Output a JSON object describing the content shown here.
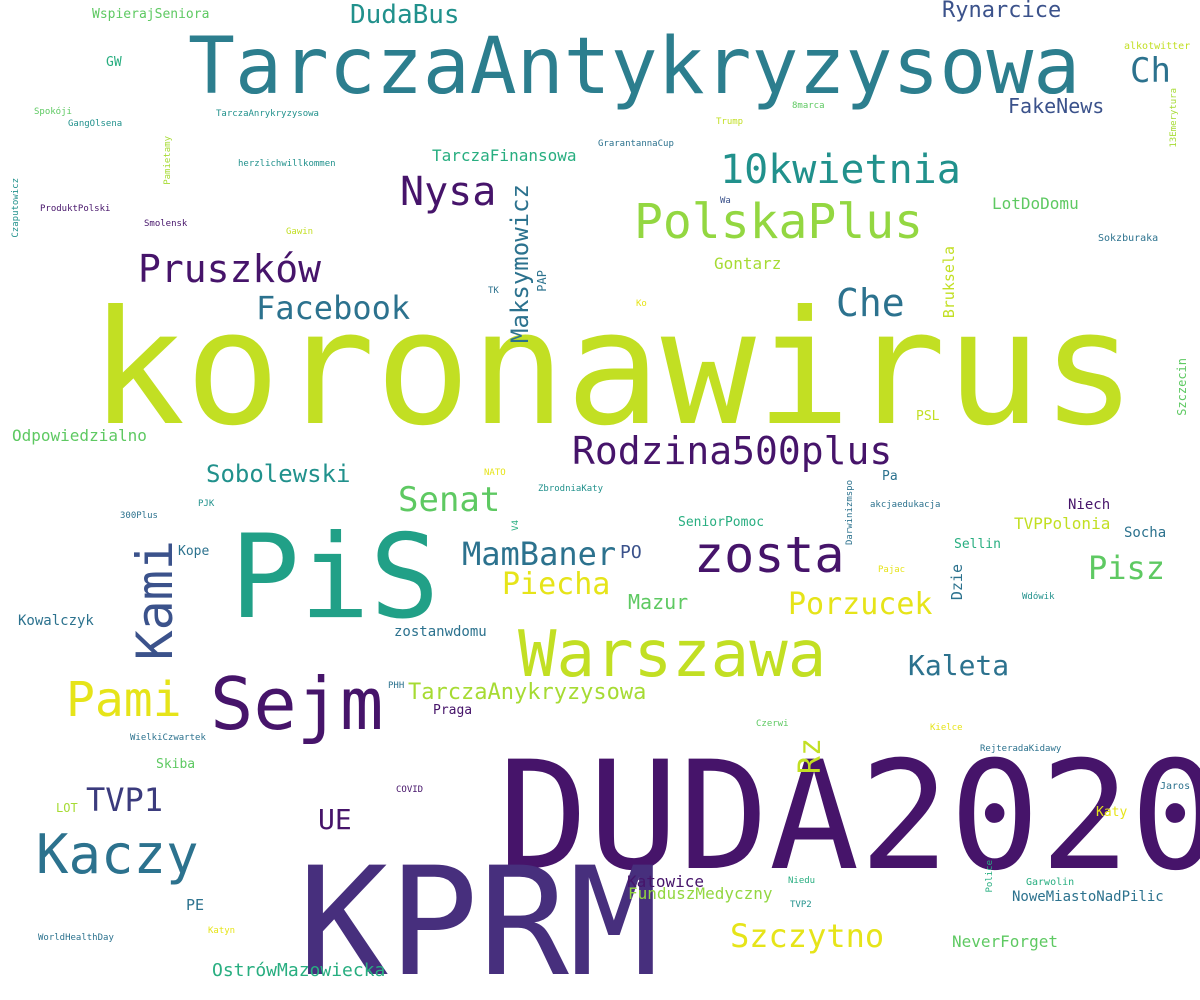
{
  "palette": {
    "dark_purple": "#440154",
    "indigo": "#472f7d",
    "blue": "#3b528b",
    "steel_blue": "#2c728e",
    "teal": "#21918c",
    "green_teal": "#28ae80",
    "green": "#5ec962",
    "lime": "#addc30",
    "yellow_green": "#c2df23",
    "yellow": "#e6e419"
  },
  "words": [
    {
      "text": "koronawirus",
      "color": "#c2df23"
    },
    {
      "text": "DUDA2020",
      "color": "#46146a"
    },
    {
      "text": "KPRM",
      "color": "#472f7d"
    },
    {
      "text": "PiS",
      "color": "#21a087"
    },
    {
      "text": "TarczaAntykryzysowa",
      "color": "#2c7e8e"
    },
    {
      "text": "Warszawa",
      "color": "#c2df23"
    },
    {
      "text": "Sejm",
      "color": "#46146a"
    },
    {
      "text": "Kaczy",
      "color": "#2c728e"
    },
    {
      "text": "Kami",
      "color": "#3b528b"
    },
    {
      "text": "Pami",
      "color": "#e6e419"
    },
    {
      "text": "zosta",
      "color": "#46146a"
    },
    {
      "text": "PolskaPlus",
      "color": "#93d741"
    },
    {
      "text": "Rodzina500plus",
      "color": "#46146a"
    },
    {
      "text": "10kwietnia",
      "color": "#21918c"
    },
    {
      "text": "Nysa",
      "color": "#46146a"
    },
    {
      "text": "Pruszków",
      "color": "#46146a"
    },
    {
      "text": "Che",
      "color": "#2c728e"
    },
    {
      "text": "Facebook",
      "color": "#2c728e"
    },
    {
      "text": "MamBaner",
      "color": "#2c728e"
    },
    {
      "text": "Senat",
      "color": "#5ec962"
    },
    {
      "text": "Szczytno",
      "color": "#e6e419"
    },
    {
      "text": "Ch",
      "color": "#2c728e"
    },
    {
      "text": "Porzucek",
      "color": "#e6e419"
    },
    {
      "text": "Piecha",
      "color": "#e6e419"
    },
    {
      "text": "Pisz",
      "color": "#5ec962"
    },
    {
      "text": "TVP1",
      "color": "#3b3b7d"
    },
    {
      "text": "Kaleta",
      "color": "#2c728e"
    },
    {
      "text": "Maksymowicz",
      "color": "#2c728e"
    },
    {
      "text": "Rz",
      "color": "#c2df23"
    },
    {
      "text": "UE",
      "color": "#46146a"
    },
    {
      "text": "DudaBus",
      "color": "#21918c"
    },
    {
      "text": "Sobolewski",
      "color": "#21918c"
    },
    {
      "text": "Rynarcice",
      "color": "#3b528b"
    },
    {
      "text": "TarczaAnykryzysowa",
      "color": "#a6db33"
    },
    {
      "text": "OstrówMazowiecka",
      "color": "#28ae80"
    },
    {
      "text": "Mazur",
      "color": "#5ec962"
    },
    {
      "text": "FakeNews",
      "color": "#3b528b"
    },
    {
      "text": "Katowice",
      "color": "#46146a"
    },
    {
      "text": "FunduszMedyczny",
      "color": "#93d741"
    },
    {
      "text": "NeverForget",
      "color": "#5ec962"
    },
    {
      "text": "Odpowiedzialno",
      "color": "#5ec962"
    },
    {
      "text": "TarczaFinansowa",
      "color": "#28ae80"
    },
    {
      "text": "Gontarz",
      "color": "#a6db33"
    },
    {
      "text": "LotDoDomu",
      "color": "#5ec962"
    },
    {
      "text": "TVPPolonia",
      "color": "#c2df23"
    },
    {
      "text": "zostanwdomu",
      "color": "#2c728e"
    },
    {
      "text": "PO",
      "color": "#3b528b"
    },
    {
      "text": "Bruksela",
      "color": "#c2df23"
    },
    {
      "text": "NoweMiastoNadPilic",
      "color": "#2c728e"
    },
    {
      "text": "Kowalczyk",
      "color": "#2c728e"
    },
    {
      "text": "Dzie",
      "color": "#2c728e"
    },
    {
      "text": "Socha",
      "color": "#2c728e"
    },
    {
      "text": "WspierajSeniora",
      "color": "#5ec962"
    },
    {
      "text": "Sellin",
      "color": "#28ae80"
    },
    {
      "text": "Niech",
      "color": "#46146a"
    },
    {
      "text": "PE",
      "color": "#2c728e"
    },
    {
      "text": "Skiba",
      "color": "#5ec962"
    },
    {
      "text": "Praga",
      "color": "#46146a"
    },
    {
      "text": "SeniorPomoc",
      "color": "#28ae80"
    },
    {
      "text": "Kope",
      "color": "#2c728e"
    },
    {
      "text": "Pa",
      "color": "#2c728e"
    },
    {
      "text": "PSL",
      "color": "#c2df23"
    },
    {
      "text": "GW",
      "color": "#28ae80"
    },
    {
      "text": "LOT",
      "color": "#a6db33"
    },
    {
      "text": "PAP",
      "color": "#2c728e"
    },
    {
      "text": "Szczecin",
      "color": "#5ec962"
    },
    {
      "text": "Katy",
      "color": "#e6e419"
    },
    {
      "text": "Garwolin",
      "color": "#28ae80"
    },
    {
      "text": "Jaros",
      "color": "#2c728e"
    },
    {
      "text": "Sokzburaka",
      "color": "#2c728e"
    },
    {
      "text": "alkotwitter",
      "color": "#c2df23"
    },
    {
      "text": "13Emerytura",
      "color": "#a6db33"
    },
    {
      "text": "Spokóji",
      "color": "#5ec962"
    },
    {
      "text": "GangOlsena",
      "color": "#21918c"
    },
    {
      "text": "TarczaAnrykryzysowa",
      "color": "#21918c"
    },
    {
      "text": "8marca",
      "color": "#5ec962"
    },
    {
      "text": "Trump",
      "color": "#c2df23"
    },
    {
      "text": "GrarantannaCup",
      "color": "#2c728e"
    },
    {
      "text": "herzlichwillkommen",
      "color": "#21918c"
    },
    {
      "text": "Pamietamy",
      "color": "#a6db33"
    },
    {
      "text": "Czaputowicz",
      "color": "#21918c"
    },
    {
      "text": "ProduktPolski",
      "color": "#46146a"
    },
    {
      "text": "Smolensk",
      "color": "#46146a"
    },
    {
      "text": "Gawin",
      "color": "#c2df23"
    },
    {
      "text": "Wa",
      "color": "#3b528b"
    },
    {
      "text": "TK",
      "color": "#2c728e"
    },
    {
      "text": "Ko",
      "color": "#e6e419"
    },
    {
      "text": "NATO",
      "color": "#e6e419"
    },
    {
      "text": "ZbrodniaKaty",
      "color": "#21918c"
    },
    {
      "text": "PJK",
      "color": "#21918c"
    },
    {
      "text": "300Plus",
      "color": "#2c728e"
    },
    {
      "text": "V4",
      "color": "#28ae80"
    },
    {
      "text": "Darwinizmspo",
      "color": "#2c728e"
    },
    {
      "text": "akcjaedukacja",
      "color": "#2c728e"
    },
    {
      "text": "Pajac",
      "color": "#e6e419"
    },
    {
      "text": "Wdówik",
      "color": "#21918c"
    },
    {
      "text": "PHH",
      "color": "#2c728e"
    },
    {
      "text": "Czerwi",
      "color": "#5ec962"
    },
    {
      "text": "Kielce",
      "color": "#e6e419"
    },
    {
      "text": "WielkiCzwartek",
      "color": "#2c728e"
    },
    {
      "text": "RejteradaKidawy",
      "color": "#2c728e"
    },
    {
      "text": "COVID",
      "color": "#46146a"
    },
    {
      "text": "Niedu",
      "color": "#28ae80"
    },
    {
      "text": "TVP2",
      "color": "#21918c"
    },
    {
      "text": "Police",
      "color": "#28ae80"
    },
    {
      "text": "Katyn",
      "color": "#e6e419"
    },
    {
      "text": "WorldHealthDay",
      "color": "#2c728e"
    }
  ]
}
